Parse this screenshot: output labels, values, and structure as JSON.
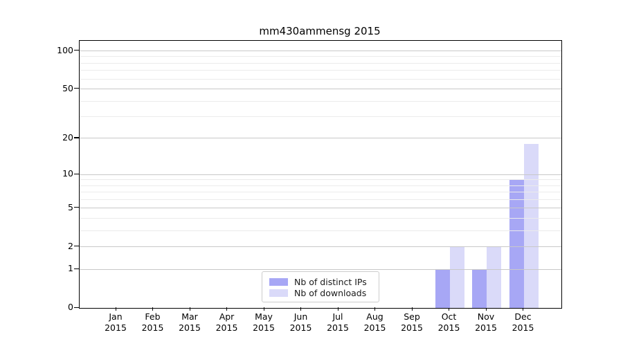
{
  "chart_data": {
    "type": "bar",
    "title": "mm430ammensg 2015",
    "categories": [
      "Jan",
      "Feb",
      "Mar",
      "Apr",
      "May",
      "Jun",
      "Jul",
      "Aug",
      "Sep",
      "Oct",
      "Nov",
      "Dec"
    ],
    "x_year_label": "2015",
    "series": [
      {
        "name": "Nb of distinct IPs",
        "color": "#a7a7f5",
        "values": [
          0,
          0,
          0,
          0,
          0,
          0,
          0,
          0,
          0,
          1,
          1,
          9
        ]
      },
      {
        "name": "Nb of downloads",
        "color": "#dadaf9",
        "values": [
          0,
          0,
          0,
          0,
          0,
          0,
          0,
          0,
          0,
          2,
          2,
          18
        ]
      }
    ],
    "xlabel": "",
    "ylabel": "",
    "yscale": "log1p",
    "ylim": [
      0,
      120
    ],
    "y_major_ticks": [
      0,
      1,
      2,
      5,
      10,
      20,
      50,
      100
    ],
    "y_minor_gridlines": [
      3,
      4,
      6,
      7,
      8,
      9,
      30,
      40,
      60,
      70,
      80,
      90
    ],
    "grid": true,
    "grid_major_color": "#c8c8c8",
    "grid_minor_color": "#ebebeb",
    "legend_position": "lower center inside",
    "legend_items": [
      "Nb of distinct IPs",
      "Nb of downloads"
    ]
  }
}
